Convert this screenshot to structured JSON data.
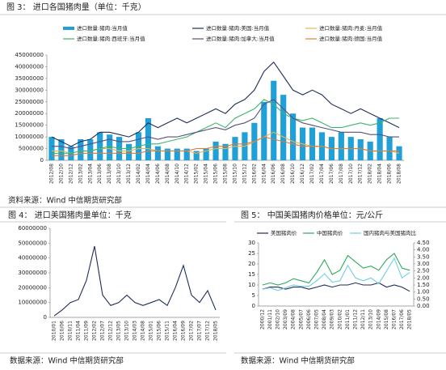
{
  "chart_data": [
    {
      "type": "bar",
      "title": "图 3：  进口各国猪肉量（单位：千克）",
      "source": "资料来源：Wind 中信期货研究部",
      "categories": [
        "2012/08",
        "2012/10",
        "2012/12",
        "2013/02",
        "2013/04",
        "2013/06",
        "2013/08",
        "2013/10",
        "2013/12",
        "2014/02",
        "2014/04",
        "2014/06",
        "2014/08",
        "2014/10",
        "2014/12",
        "2015/02",
        "2015/04",
        "2015/06",
        "2015/08",
        "2015/10",
        "2015/12",
        "2016/02",
        "2016/04",
        "2016/06",
        "2016/08",
        "2016/10",
        "2016/12",
        "2017/02",
        "2017/04",
        "2017/06",
        "2017/08",
        "2017/10",
        "2017/12",
        "2018/02",
        "2018/04",
        "2018/06",
        "2018/08"
      ],
      "ylim": [
        0,
        45000000
      ],
      "yticks": [
        0,
        5000000,
        10000000,
        15000000,
        20000000,
        25000000,
        30000000,
        35000000,
        40000000,
        45000000
      ],
      "series": [
        {
          "name": "进口数量:猪肉:当月值",
          "color": "#1fa0d8",
          "values": [
            10000000,
            9000000,
            6000000,
            9000000,
            9000000,
            12000000,
            11000000,
            10000000,
            7000000,
            12000000,
            18000000,
            6000000,
            5000000,
            5000000,
            5000000,
            4000000,
            5000000,
            8000000,
            7000000,
            10000000,
            12000000,
            16000000,
            25000000,
            34000000,
            28000000,
            20000000,
            14000000,
            14000000,
            12000000,
            10000000,
            12000000,
            10000000,
            9000000,
            8000000,
            18000000,
            10000000,
            6000000
          ]
        },
        {
          "name": "进口数量:猪肉:美国:当月值",
          "type": "line",
          "color": "#1f2d5a",
          "values": [
            10000000,
            8000000,
            6000000,
            8000000,
            9000000,
            12000000,
            12000000,
            11000000,
            10000000,
            12000000,
            16000000,
            14000000,
            16000000,
            18000000,
            16000000,
            18000000,
            20000000,
            22000000,
            20000000,
            24000000,
            26000000,
            30000000,
            38000000,
            42000000,
            36000000,
            30000000,
            28000000,
            30000000,
            28000000,
            24000000,
            22000000,
            20000000,
            22000000,
            20000000,
            18000000,
            16000000,
            14000000
          ]
        },
        {
          "name": "进口数量:猪肉:丹麦:当月值",
          "type": "line",
          "color": "#e8b64a",
          "values": [
            4000000,
            4000000,
            3000000,
            4000000,
            4000000,
            5000000,
            5000000,
            4000000,
            4000000,
            5000000,
            5000000,
            4000000,
            4000000,
            4000000,
            4000000,
            3000000,
            4000000,
            5000000,
            5000000,
            6000000,
            6000000,
            8000000,
            10000000,
            12000000,
            10000000,
            8000000,
            7000000,
            6000000,
            6000000,
            5000000,
            5000000,
            5000000,
            5000000,
            4000000,
            4000000,
            4000000,
            3000000
          ]
        },
        {
          "name": "进口数量:猪肉:西班牙:当月值",
          "type": "line",
          "color": "#3cb46e",
          "values": [
            3000000,
            3000000,
            3000000,
            4000000,
            4000000,
            5000000,
            6000000,
            5000000,
            5000000,
            6000000,
            7000000,
            7000000,
            8000000,
            9000000,
            10000000,
            12000000,
            14000000,
            16000000,
            14000000,
            18000000,
            20000000,
            22000000,
            26000000,
            24000000,
            20000000,
            18000000,
            17000000,
            18000000,
            16000000,
            14000000,
            14000000,
            15000000,
            16000000,
            15000000,
            16000000,
            18000000,
            18000000
          ]
        },
        {
          "name": "进口数量:猪肉:加拿大:当月值",
          "type": "line",
          "color": "#5a4f7a",
          "values": [
            6000000,
            6000000,
            5000000,
            6000000,
            7000000,
            8000000,
            9000000,
            8000000,
            8000000,
            9000000,
            10000000,
            9000000,
            10000000,
            10000000,
            11000000,
            12000000,
            13000000,
            14000000,
            13000000,
            15000000,
            16000000,
            18000000,
            24000000,
            26000000,
            22000000,
            18000000,
            16000000,
            15000000,
            14000000,
            13000000,
            12000000,
            12000000,
            12000000,
            11000000,
            11000000,
            10000000,
            10000000
          ]
        },
        {
          "name": "进口数量:猪肉:德国:当月值",
          "type": "line",
          "color": "#e07b39",
          "values": [
            2000000,
            2000000,
            2000000,
            3000000,
            3000000,
            3000000,
            3000000,
            3000000,
            3000000,
            3000000,
            4000000,
            4000000,
            4000000,
            4000000,
            4000000,
            5000000,
            5000000,
            6000000,
            6000000,
            7000000,
            7000000,
            8000000,
            10000000,
            9000000,
            8000000,
            7000000,
            6000000,
            6000000,
            6000000,
            5000000,
            5000000,
            5000000,
            5000000,
            4000000,
            4000000,
            4000000,
            4000000
          ]
        }
      ]
    },
    {
      "type": "line",
      "title": "图 4：  进口美国猪肉量单位：千克",
      "source": "数据来源：Wind  中信期货研究部",
      "categories": [
        "2010/01",
        "2010/06",
        "2010/11",
        "2011/04",
        "2011/09",
        "2012/02",
        "2012/07",
        "2012/12",
        "2013/05",
        "2013/10",
        "2014/03",
        "2014/08",
        "2015/01",
        "2015/06",
        "2015/11",
        "2016/04",
        "2016/09",
        "2017/02",
        "2017/07",
        "2017/12",
        "2018/05"
      ],
      "ylim": [
        0,
        60000000
      ],
      "yticks": [
        0,
        10000000,
        20000000,
        30000000,
        40000000,
        50000000,
        60000000
      ],
      "series": [
        {
          "color": "#1f2d5a",
          "values": [
            1000000,
            5000000,
            10000000,
            12000000,
            25000000,
            48000000,
            15000000,
            8000000,
            10000000,
            15000000,
            10000000,
            8000000,
            10000000,
            12000000,
            8000000,
            20000000,
            35000000,
            15000000,
            10000000,
            18000000,
            5000000
          ]
        }
      ]
    },
    {
      "type": "line",
      "title": "图 5：  中国美国猪肉价格单位：元/公斤",
      "source": "数据来源：Wind  中信期货研究部",
      "categories": [
        "2000/12",
        "2001/11",
        "2002/10",
        "2003/09",
        "2004/08",
        "2005/07",
        "2006/06",
        "2007/05",
        "2008/04",
        "2009/03",
        "2010/02",
        "2011/01",
        "2011/12",
        "2012/11",
        "2013/10",
        "2014/09",
        "2015/08",
        "2016/07",
        "2017/06",
        "2018/05"
      ],
      "ylim": [
        0,
        30
      ],
      "yticks": [
        0,
        5,
        10,
        15,
        20,
        25,
        30
      ],
      "y2lim": [
        0,
        4.5
      ],
      "y2ticks": [
        {
          "value": 0,
          "label": "0.00"
        },
        {
          "value": 0.5,
          "label": "0.50"
        },
        {
          "value": 1,
          "label": "1.00"
        },
        {
          "value": 1.5,
          "label": "1.50"
        },
        {
          "value": 2,
          "label": "2.00"
        },
        {
          "value": 2.5,
          "label": "2.50"
        },
        {
          "value": 3,
          "label": "3.00"
        },
        {
          "value": 3.5,
          "label": "3.50"
        },
        {
          "value": 4,
          "label": "4.00"
        },
        {
          "value": 4.5,
          "label": "4.50"
        }
      ],
      "series": [
        {
          "name": "美国猪肉价",
          "color": "#1f2d5a",
          "values": [
            8,
            9,
            9,
            8,
            9,
            9,
            8,
            9,
            10,
            9,
            10,
            10,
            11,
            10,
            10,
            11,
            9,
            10,
            9,
            7
          ]
        },
        {
          "name": "中国猪肉价",
          "color": "#2eaa5c",
          "values": [
            10,
            11,
            10,
            11,
            13,
            12,
            11,
            16,
            22,
            15,
            17,
            24,
            21,
            18,
            19,
            17,
            22,
            25,
            18,
            17
          ]
        },
        {
          "name": "国内猪肉与美国猪肉比",
          "axis": "y2",
          "color": "#6fcfe0",
          "values": [
            1.2,
            1.3,
            1.1,
            1.3,
            1.5,
            1.4,
            1.4,
            1.8,
            2.3,
            1.7,
            1.8,
            2.9,
            2.0,
            1.8,
            2.0,
            1.6,
            2.5,
            3.4,
            2.0,
            2.4
          ]
        }
      ]
    }
  ]
}
